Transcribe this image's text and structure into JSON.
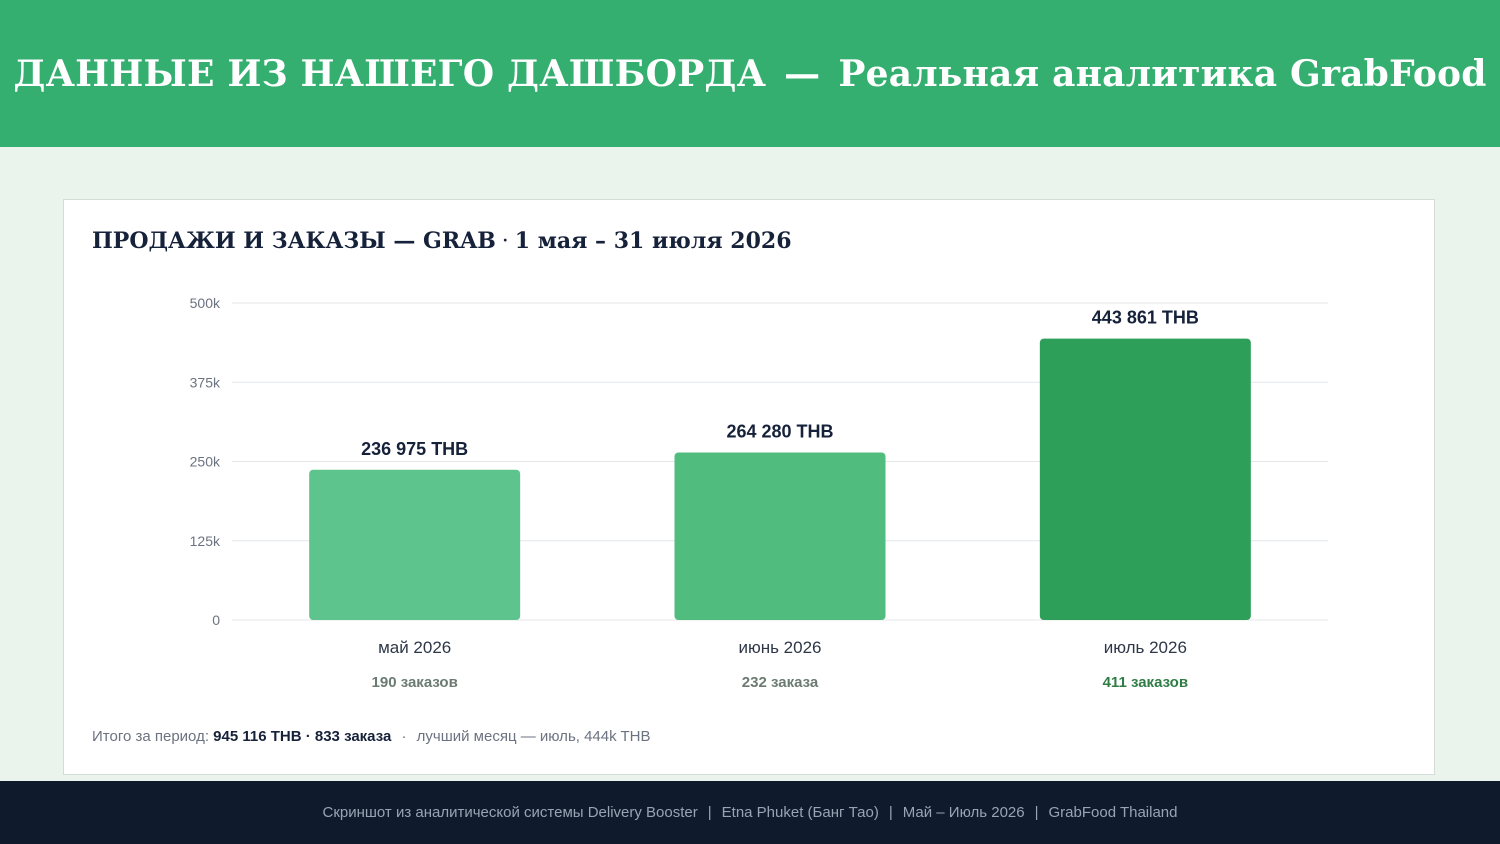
{
  "header": {
    "title_left": "ДАННЫЕ ИЗ НАШЕГО ДАШБОРДА",
    "dash": "—",
    "title_right": "Реальная аналитика GrabFood"
  },
  "card": {
    "title_main": "ПРОДАЖИ И ЗАКАЗЫ — GRAB",
    "title_sep": "·",
    "title_period": "1 мая – 31 июля 2026"
  },
  "chart_data": {
    "type": "bar",
    "categories": [
      "май 2026",
      "июнь 2026",
      "июль 2026"
    ],
    "values": [
      236975,
      264280,
      443861
    ],
    "value_labels": [
      "236 975 THB",
      "264 280 THB",
      "443 861 THB"
    ],
    "orders_labels": [
      "190 заказов",
      "232 заказа",
      "411 заказов"
    ],
    "ylim": [
      0,
      500000
    ],
    "yticks": [
      0,
      125000,
      250000,
      375000,
      500000
    ],
    "ytick_labels": [
      "0",
      "125k",
      "250k",
      "375k",
      "500k"
    ],
    "grid": true,
    "colors": [
      "#5ec48d",
      "#50bd7e",
      "#2e9f59"
    ],
    "orders_colors": [
      "#6b7b72",
      "#6b7b72",
      "#2f7d45"
    ]
  },
  "summary": {
    "prefix": "Итого за период:",
    "totals": "945 116 THB · 833 заказа",
    "dot": "·",
    "best": "лучший месяц — июль, 444k THB"
  },
  "footer": {
    "items": [
      "Скриншот из аналитической системы Delivery Booster",
      "Etna Phuket (Банг Тао)",
      "Май – Июль 2026",
      "GrabFood Thailand"
    ],
    "sep": "|"
  },
  "colors": {
    "header_bg": "#34af70",
    "page_bg": "#eaf4ec",
    "footer_bg": "#0f1b2d",
    "text_dark": "#16213a"
  }
}
